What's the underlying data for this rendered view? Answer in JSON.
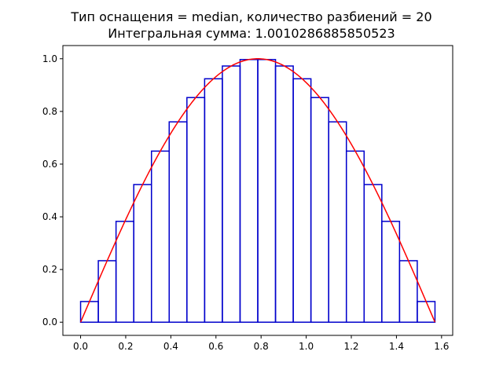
{
  "chart_data": {
    "type": "line",
    "title": "Тип оснащения = median, количество разбиений = 20",
    "subtitle": "Интегральная сумма: 1.0010286885850523",
    "xlabel": "",
    "ylabel": "",
    "xlim": [
      0,
      1.5708
    ],
    "ylim": [
      0,
      1.0
    ],
    "xticks": [
      "0.0",
      "0.2",
      "0.4",
      "0.6",
      "0.8",
      "1.0",
      "1.2",
      "1.4",
      "1.6"
    ],
    "yticks": [
      "0.0",
      "0.2",
      "0.4",
      "0.6",
      "0.8",
      "1.0"
    ],
    "grid": false,
    "curve": {
      "function": "sin(2x)",
      "color": "#ff0000"
    },
    "rectangles": {
      "color": "#0000cc",
      "n": 20,
      "heights": [
        0.0785,
        0.2334,
        0.3827,
        0.5225,
        0.6494,
        0.7604,
        0.8526,
        0.9239,
        0.9724,
        0.9969,
        0.9969,
        0.9724,
        0.9239,
        0.8526,
        0.7604,
        0.6494,
        0.5225,
        0.3827,
        0.2334,
        0.0785
      ]
    }
  }
}
